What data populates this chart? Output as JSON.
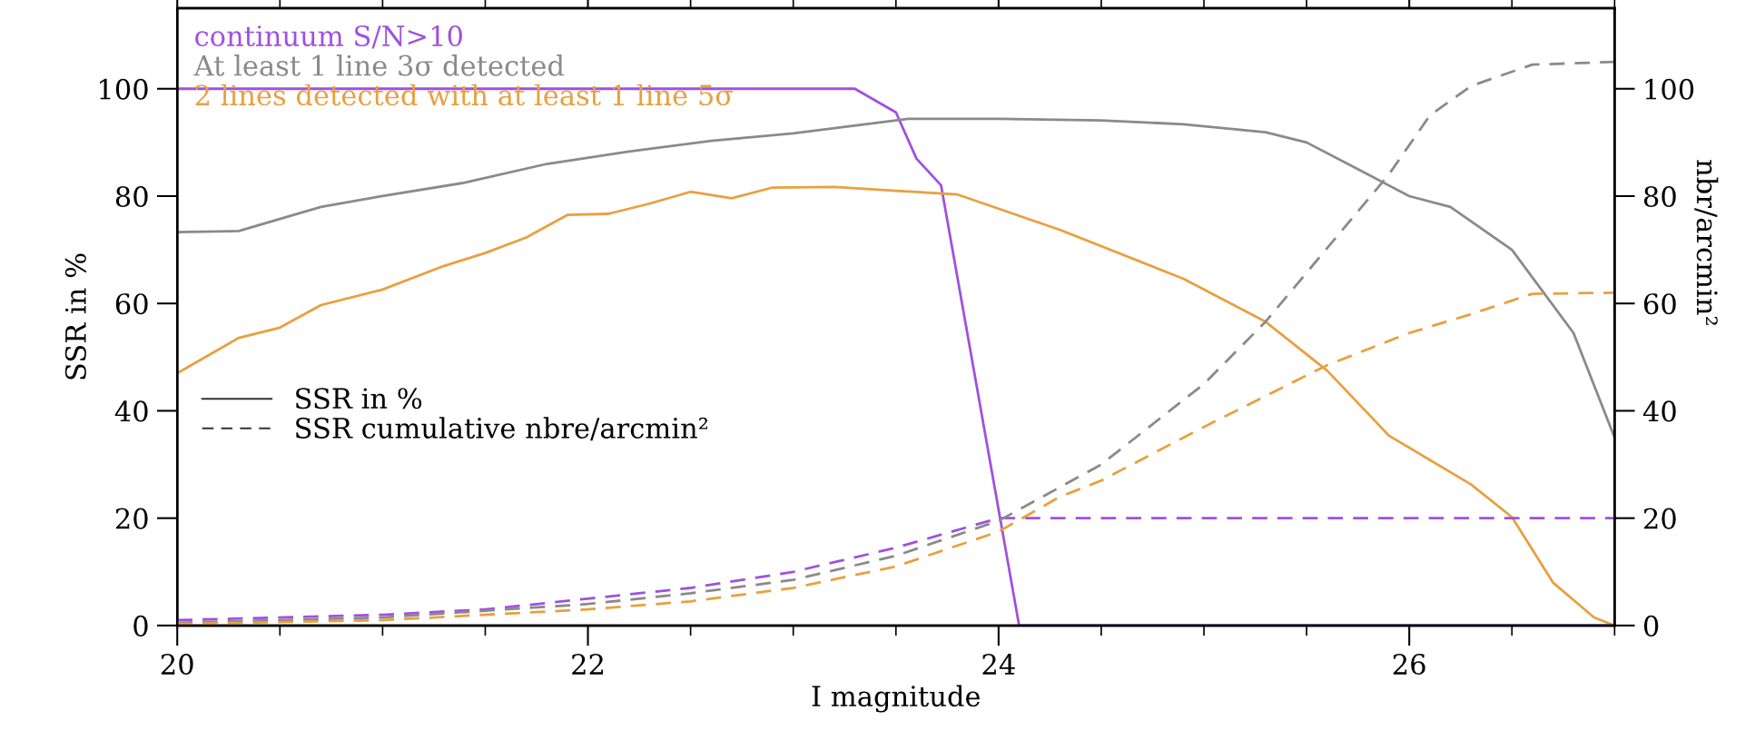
{
  "chart_data": {
    "type": "line",
    "xlabel": "I magnitude",
    "ylabel": "SSR in %",
    "y2label": "nbr/arcmin²",
    "xlim": [
      20,
      27
    ],
    "xticks": [
      20,
      22,
      24,
      26
    ],
    "ylim": [
      0,
      115
    ],
    "yticks": [
      0,
      20,
      40,
      60,
      80,
      100
    ],
    "y2lim": [
      0,
      115
    ],
    "y2ticks": [
      0,
      20,
      40,
      60,
      80,
      100
    ],
    "legend": "top left",
    "grid": false,
    "marker": "none",
    "annotations": [
      "SSR in %",
      "SSR cumulative nbre/arcmin²"
    ],
    "series": [
      {
        "name": "continuum S/N>10",
        "color": "#a050e0",
        "line_style": "solid",
        "x": [
          20,
          23.3,
          23.5,
          23.6,
          23.72,
          24.1,
          27
        ],
        "values": [
          100,
          100,
          95.6,
          87,
          82,
          0,
          0
        ]
      },
      {
        "name": "At least 1 line 3σ detected",
        "color": "#8a8a8a",
        "line_style": "solid",
        "x": [
          20,
          20.3,
          20.7,
          21,
          21.4,
          21.8,
          22.2,
          22.6,
          23,
          23.56,
          24,
          24.5,
          24.9,
          25.3,
          25.5,
          25.8,
          26,
          26.2,
          26.5,
          26.8,
          27
        ],
        "values": [
          73.3,
          73.5,
          78,
          80,
          82.5,
          86,
          88.3,
          90.3,
          91.7,
          94.4,
          94.4,
          94.1,
          93.4,
          91.9,
          90,
          84,
          80,
          78,
          70,
          54.5,
          35
        ]
      },
      {
        "name": "2 lines detected with at least 1 line 5σ",
        "color": "#e8a040",
        "line_style": "solid",
        "x": [
          20,
          20.3,
          20.5,
          20.7,
          21,
          21.3,
          21.5,
          21.7,
          21.9,
          22.1,
          22.3,
          22.5,
          22.7,
          22.9,
          23.2,
          23.5,
          23.8,
          24.3,
          24.9,
          25.3,
          25.6,
          25.9,
          26.3,
          26.5,
          26.7,
          26.9,
          27
        ],
        "values": [
          47,
          53.6,
          55.5,
          59.7,
          62.6,
          67,
          69.4,
          72.3,
          76.5,
          76.7,
          78.6,
          80.8,
          79.6,
          81.6,
          81.7,
          81,
          80.3,
          73.7,
          64.6,
          56.6,
          47.5,
          35.4,
          26.3,
          20.2,
          8,
          1.5,
          0
        ]
      },
      {
        "color": "#a050e0",
        "line_style": "dashed",
        "axis": "y2",
        "x": [
          20,
          21,
          21.5,
          22,
          22.5,
          23,
          23.5,
          24,
          27
        ],
        "values": [
          1,
          2,
          3,
          5,
          7,
          10,
          14.5,
          20,
          20
        ]
      },
      {
        "color": "#8a8a8a",
        "line_style": "dashed",
        "axis": "y2",
        "x": [
          20,
          21,
          22,
          22.5,
          23,
          23.5,
          24,
          24.5,
          25,
          25.3,
          25.9,
          26.1,
          26.3,
          26.6,
          27
        ],
        "values": [
          0.5,
          1.5,
          4,
          6,
          8.5,
          13,
          19.5,
          30,
          45,
          56.6,
          84,
          95,
          100.5,
          104.5,
          105
        ]
      },
      {
        "color": "#e8a040",
        "line_style": "dashed",
        "axis": "y2",
        "x": [
          20,
          21,
          22,
          22.5,
          23,
          23.5,
          24,
          24.3,
          24.5,
          25,
          25.6,
          26,
          26.3,
          26.6,
          27
        ],
        "values": [
          0.3,
          1,
          3,
          4.5,
          7,
          11,
          17.5,
          24,
          27,
          37,
          48.5,
          54.5,
          58,
          61.8,
          62
        ]
      }
    ]
  }
}
